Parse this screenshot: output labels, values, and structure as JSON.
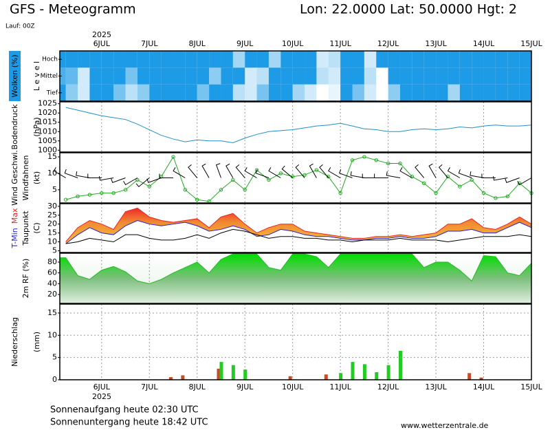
{
  "header": {
    "title": "GFS - Meteogramm",
    "location": "Lon: 22.0000 Lat: 50.0000 Hgt: 2",
    "run": "Lauf: 00Z"
  },
  "year": "2025",
  "sun": {
    "sunrise": "Sonnenaufgang heute 02:30 UTC",
    "sunset": "Sonnenuntergang heute 18:42 UTC"
  },
  "source": "www.wetterzentrale.de",
  "chart_data": [
    {
      "type": "heatmap",
      "ylabel": "Wolken (%)",
      "ylabel2": "L e v e l",
      "color": "#1e9be6",
      "grid": true,
      "xlim": [
        5.125,
        15
      ],
      "xticks": [
        {
          "value": 6,
          "label": "6JUL"
        },
        {
          "value": 7,
          "label": "7JUL"
        },
        {
          "value": 8,
          "label": "8JUL"
        },
        {
          "value": 9,
          "label": "9JUL"
        },
        {
          "value": 10,
          "label": "10JUL"
        },
        {
          "value": 11,
          "label": "11JUL"
        },
        {
          "value": 12,
          "label": "12JUL"
        },
        {
          "value": 13,
          "label": "13JUL"
        },
        {
          "value": 14,
          "label": "14JUL"
        },
        {
          "value": 15,
          "label": "15JUL"
        }
      ],
      "x": [
        5.25,
        5.5,
        5.75,
        6,
        6.25,
        6.5,
        6.75,
        7,
        7.25,
        7.5,
        7.75,
        8,
        8.25,
        8.5,
        8.75,
        9,
        9.25,
        9.5,
        9.75,
        10,
        10.25,
        10.5,
        10.75,
        11,
        11.25,
        11.5,
        11.75,
        12,
        12.25,
        12.5,
        12.75,
        13,
        13.25,
        13.5,
        13.75,
        14,
        14.25,
        14.5,
        14.75,
        15
      ],
      "series": [
        {
          "name": "Hoch",
          "values": [
            100,
            100,
            100,
            100,
            100,
            100,
            100,
            100,
            100,
            100,
            100,
            100,
            100,
            100,
            100,
            40,
            100,
            100,
            40,
            100,
            100,
            100,
            20,
            30,
            100,
            100,
            20,
            100,
            100,
            100,
            100,
            100,
            100,
            100,
            100,
            100,
            100,
            100,
            100,
            100
          ]
        },
        {
          "name": "Mittel",
          "values": [
            80,
            70,
            20,
            100,
            100,
            100,
            60,
            100,
            100,
            100,
            100,
            100,
            100,
            50,
            100,
            100,
            20,
            30,
            100,
            100,
            100,
            100,
            30,
            20,
            100,
            100,
            30,
            0,
            100,
            100,
            100,
            100,
            100,
            100,
            100,
            100,
            100,
            100,
            100,
            100
          ]
        },
        {
          "name": "Tief",
          "values": [
            100,
            50,
            20,
            100,
            100,
            60,
            30,
            50,
            100,
            100,
            100,
            100,
            60,
            100,
            100,
            30,
            20,
            60,
            100,
            100,
            40,
            20,
            0,
            10,
            100,
            60,
            20,
            0,
            50,
            100,
            100,
            100,
            100,
            40,
            100,
            100,
            100,
            100,
            100,
            100
          ]
        }
      ]
    },
    {
      "type": "line",
      "ylabel": "Bodendruck",
      "ylabel2": "(hPa)",
      "grid": true,
      "ylim": [
        999,
        1026
      ],
      "yticks": [
        1000,
        1005,
        1010,
        1015,
        1020,
        1025
      ],
      "xlim": [
        5.125,
        15
      ],
      "xticks": [
        {
          "value": 6,
          "label": "6JUL"
        },
        {
          "value": 7,
          "label": "7JUL"
        },
        {
          "value": 8,
          "label": "8JUL"
        },
        {
          "value": 9,
          "label": "9JUL"
        },
        {
          "value": 10,
          "label": "10JUL"
        },
        {
          "value": 11,
          "label": "11JUL"
        },
        {
          "value": 12,
          "label": "12JUL"
        },
        {
          "value": 13,
          "label": "13JUL"
        },
        {
          "value": 14,
          "label": "14JUL"
        },
        {
          "value": 15,
          "label": "15JUL"
        }
      ],
      "x": [
        5.25,
        5.5,
        5.75,
        6,
        6.25,
        6.5,
        6.75,
        7,
        7.25,
        7.5,
        7.75,
        8,
        8.25,
        8.5,
        8.75,
        9,
        9.25,
        9.5,
        9.75,
        10,
        10.25,
        10.5,
        10.75,
        11,
        11.25,
        11.5,
        11.75,
        12,
        12.25,
        12.5,
        12.75,
        13,
        13.25,
        13.5,
        13.75,
        14,
        14.25,
        14.5,
        14.75,
        15
      ],
      "series": [
        {
          "color": "#1f8fc8",
          "values": [
            1023,
            1021.5,
            1020,
            1018.5,
            1017.5,
            1016.5,
            1014,
            1011,
            1008,
            1006,
            1004.5,
            1005.5,
            1005,
            1005,
            1004,
            1006.5,
            1008.5,
            1010,
            1010.5,
            1011,
            1012,
            1013,
            1013.5,
            1014.5,
            1013,
            1011.5,
            1011,
            1010,
            1010,
            1011,
            1011.5,
            1011,
            1011.5,
            1012.5,
            1012,
            1013,
            1013.5,
            1013,
            1013,
            1013.5
          ]
        }
      ]
    },
    {
      "type": "line",
      "ylabel": "Windfahnen",
      "ylabel2": "(kt)",
      "grid": true,
      "markers": true,
      "ylim": [
        1,
        16.25
      ],
      "yticks": [
        5,
        10,
        15
      ],
      "xlim": [
        5.125,
        15
      ],
      "xticks": [
        {
          "value": 6,
          "label": "6JUL"
        },
        {
          "value": 7,
          "label": "7JUL"
        },
        {
          "value": 8,
          "label": "8JUL"
        },
        {
          "value": 9,
          "label": "9JUL"
        },
        {
          "value": 10,
          "label": "10JUL"
        },
        {
          "value": 11,
          "label": "11JUL"
        },
        {
          "value": 12,
          "label": "12JUL"
        },
        {
          "value": 13,
          "label": "13JUL"
        },
        {
          "value": 14,
          "label": "14JUL"
        },
        {
          "value": 15,
          "label": "15JUL"
        }
      ],
      "x": [
        5.25,
        5.5,
        5.75,
        6,
        6.25,
        6.5,
        6.75,
        7,
        7.25,
        7.5,
        7.75,
        8,
        8.25,
        8.5,
        8.75,
        9,
        9.25,
        9.5,
        9.75,
        10,
        10.25,
        10.5,
        10.75,
        11,
        11.25,
        11.5,
        11.75,
        12,
        12.25,
        12.5,
        12.75,
        13,
        13.25,
        13.5,
        13.75,
        14,
        14.25,
        14.5,
        14.75,
        15
      ],
      "directions": [
        300,
        290,
        280,
        270,
        260,
        250,
        240,
        230,
        250,
        270,
        300,
        320,
        330,
        340,
        330,
        320,
        300,
        290,
        300,
        310,
        320,
        330,
        320,
        300,
        290,
        280,
        270,
        270,
        280,
        300,
        320,
        330,
        320,
        300,
        290,
        280,
        270,
        260,
        250,
        240
      ],
      "series": [
        {
          "name": "Wind Geschwi.",
          "color": "#22aa22",
          "values": [
            2,
            3,
            3.5,
            4,
            4,
            5,
            8,
            6,
            9,
            15,
            5,
            2,
            1.5,
            5,
            8,
            5,
            11,
            8,
            10,
            9,
            9.5,
            11,
            9,
            4,
            14,
            15,
            14,
            13,
            13,
            9,
            7,
            4,
            9,
            6,
            8,
            4,
            2.5,
            3,
            7,
            4
          ]
        }
      ]
    },
    {
      "type": "line",
      "ylabel": "(C)",
      "grid": true,
      "band": true,
      "ylim": [
        4,
        31.5
      ],
      "yticks": [
        5,
        10,
        15,
        20,
        25,
        30
      ],
      "xlim": [
        5.125,
        15
      ],
      "xticks": [
        {
          "value": 6,
          "label": "6JUL"
        },
        {
          "value": 7,
          "label": "7JUL"
        },
        {
          "value": 8,
          "label": "8JUL"
        },
        {
          "value": 9,
          "label": "9JUL"
        },
        {
          "value": 10,
          "label": "10JUL"
        },
        {
          "value": 11,
          "label": "11JUL"
        },
        {
          "value": 12,
          "label": "12JUL"
        },
        {
          "value": 13,
          "label": "13JUL"
        },
        {
          "value": 14,
          "label": "14JUL"
        },
        {
          "value": 15,
          "label": "15JUL"
        }
      ],
      "x": [
        5.25,
        5.5,
        5.75,
        6,
        6.25,
        6.5,
        6.75,
        7,
        7.25,
        7.5,
        7.75,
        8,
        8.25,
        8.5,
        8.75,
        9,
        9.25,
        9.5,
        9.75,
        10,
        10.25,
        10.5,
        10.75,
        11,
        11.25,
        11.5,
        11.75,
        12,
        12.25,
        12.5,
        12.75,
        13,
        13.25,
        13.5,
        13.75,
        14,
        14.25,
        14.5,
        14.75,
        15
      ],
      "series": [
        {
          "name": "T-Min",
          "color": "#2222dd",
          "values": [
            9,
            14,
            18,
            15,
            14,
            19,
            22,
            20,
            19,
            20,
            21,
            19,
            16,
            17,
            19,
            17,
            13,
            14,
            17,
            16,
            14,
            13,
            13,
            12,
            11,
            11,
            12,
            12,
            13,
            12,
            12,
            13,
            16,
            16,
            17,
            15,
            15,
            18,
            21,
            18
          ]
        },
        {
          "name": "Max",
          "color": "#ee2222",
          "values": [
            10,
            18,
            22,
            20,
            17,
            27,
            29,
            24,
            22,
            21,
            22,
            23,
            18,
            24,
            26,
            20,
            15,
            18,
            20,
            20,
            16,
            15,
            14,
            13,
            12,
            12,
            13,
            13,
            14,
            13,
            14,
            15,
            20,
            20,
            23,
            18,
            17,
            20,
            24,
            20
          ]
        },
        {
          "name": "Taupunkt",
          "color": "#000000",
          "values": [
            9,
            10,
            12,
            11,
            10,
            14,
            14,
            12,
            11,
            11,
            12,
            14,
            12,
            15,
            17,
            16,
            14,
            12,
            13,
            13,
            12,
            12,
            11,
            11,
            10,
            11,
            11,
            11,
            12,
            11,
            11,
            11,
            10,
            11,
            12,
            13,
            13,
            13,
            14,
            13
          ]
        }
      ]
    },
    {
      "type": "area",
      "grid": true,
      "ylim": [
        3.5,
        96.5
      ],
      "yticks": [
        20,
        40,
        60,
        80
      ],
      "xlim": [
        5.125,
        15
      ],
      "xticks": [
        {
          "value": 6,
          "label": "6JUL"
        },
        {
          "value": 7,
          "label": "7JUL"
        },
        {
          "value": 8,
          "label": "8JUL"
        },
        {
          "value": 9,
          "label": "9JUL"
        },
        {
          "value": 10,
          "label": "10JUL"
        },
        {
          "value": 11,
          "label": "11JUL"
        },
        {
          "value": 12,
          "label": "12JUL"
        },
        {
          "value": 13,
          "label": "13JUL"
        },
        {
          "value": 14,
          "label": "14JUL"
        },
        {
          "value": 15,
          "label": "15JUL"
        }
      ],
      "x": [
        5.25,
        5.5,
        5.75,
        6,
        6.25,
        6.5,
        6.75,
        7,
        7.25,
        7.5,
        7.75,
        8,
        8.25,
        8.5,
        8.75,
        9,
        9.25,
        9.5,
        9.75,
        10,
        10.25,
        10.5,
        10.75,
        11,
        11.25,
        11.5,
        11.75,
        12,
        12.25,
        12.5,
        12.75,
        13,
        13.25,
        13.5,
        13.75,
        14,
        14.25,
        14.5,
        14.75,
        15
      ],
      "series": [
        {
          "name": "2m RF (%)",
          "color": "#22bb22",
          "values": [
            88,
            55,
            48,
            65,
            72,
            62,
            45,
            40,
            48,
            60,
            70,
            80,
            60,
            85,
            95,
            95,
            95,
            70,
            65,
            95,
            95,
            90,
            70,
            95,
            95,
            95,
            95,
            95,
            95,
            95,
            70,
            80,
            80,
            65,
            45,
            92,
            90,
            60,
            55,
            78
          ]
        }
      ]
    },
    {
      "type": "bar",
      "ylabel": "Niederschlag",
      "ylabel2": "(mm)",
      "grid": true,
      "ylim": [
        0,
        17
      ],
      "yticks": [
        0,
        5,
        10,
        15
      ],
      "xlim": [
        5.125,
        15
      ],
      "xticks": [
        {
          "value": 6,
          "label": "6JUL"
        },
        {
          "value": 7,
          "label": "7JUL"
        },
        {
          "value": 8,
          "label": "8JUL"
        },
        {
          "value": 9,
          "label": "9JUL"
        },
        {
          "value": 10,
          "label": "10JUL"
        },
        {
          "value": 11,
          "label": "11JUL"
        },
        {
          "value": 12,
          "label": "12JUL"
        },
        {
          "value": 13,
          "label": "13JUL"
        },
        {
          "value": 14,
          "label": "14JUL"
        },
        {
          "value": 15,
          "label": "15JUL"
        }
      ],
      "x": [
        5.25,
        5.5,
        5.75,
        6,
        6.25,
        6.5,
        6.75,
        7,
        7.25,
        7.5,
        7.75,
        8,
        8.25,
        8.5,
        8.75,
        9,
        9.25,
        9.5,
        9.75,
        10,
        10.25,
        10.5,
        10.75,
        11,
        11.25,
        11.5,
        11.75,
        12,
        12.25,
        12.5,
        12.75,
        13,
        13.25,
        13.5,
        13.75,
        14,
        14.25,
        14.5,
        14.75,
        15
      ],
      "series": [
        {
          "color": "#c0502a",
          "values": [
            0,
            0,
            0,
            0,
            0,
            0,
            0,
            0,
            0,
            0.6,
            1,
            0,
            0,
            2.5,
            0,
            0,
            0,
            0,
            0,
            0.8,
            0,
            0,
            1.2,
            0,
            0,
            0,
            0,
            0,
            0,
            0,
            0,
            0,
            0,
            0,
            1.5,
            0.5,
            0,
            0,
            0,
            0
          ]
        },
        {
          "color": "#22cc22",
          "values": [
            0,
            0,
            0,
            0,
            0,
            0,
            0,
            0,
            0,
            0,
            0,
            0,
            0,
            4,
            3.3,
            2.3,
            0,
            0,
            0,
            0,
            0,
            0,
            0,
            1.5,
            4,
            3.5,
            1.7,
            3.3,
            6.5,
            0,
            0,
            0,
            0,
            0,
            0,
            0,
            0,
            0,
            0,
            0
          ]
        }
      ]
    }
  ]
}
